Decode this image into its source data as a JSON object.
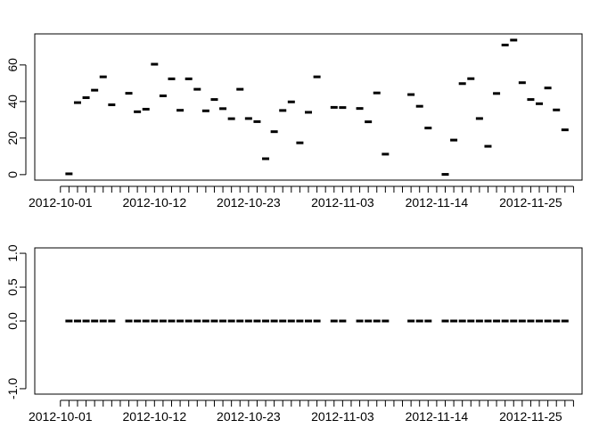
{
  "chart_data": [
    {
      "type": "scatter",
      "title": "",
      "xlabel": "",
      "ylabel": "",
      "x": [
        "2012-10-02",
        "2012-10-03",
        "2012-10-04",
        "2012-10-05",
        "2012-10-06",
        "2012-10-07",
        "2012-10-09",
        "2012-10-10",
        "2012-10-11",
        "2012-10-12",
        "2012-10-13",
        "2012-10-14",
        "2012-10-15",
        "2012-10-16",
        "2012-10-17",
        "2012-10-18",
        "2012-10-19",
        "2012-10-20",
        "2012-10-21",
        "2012-10-22",
        "2012-10-23",
        "2012-10-24",
        "2012-10-25",
        "2012-10-26",
        "2012-10-27",
        "2012-10-28",
        "2012-10-29",
        "2012-10-30",
        "2012-10-31",
        "2012-11-02",
        "2012-11-03",
        "2012-11-05",
        "2012-11-06",
        "2012-11-07",
        "2012-11-08",
        "2012-11-11",
        "2012-11-12",
        "2012-11-13",
        "2012-11-15",
        "2012-11-16",
        "2012-11-17",
        "2012-11-18",
        "2012-11-19",
        "2012-11-20",
        "2012-11-21",
        "2012-11-22",
        "2012-11-23",
        "2012-11-24",
        "2012-11-25",
        "2012-11-26",
        "2012-11-27",
        "2012-11-28",
        "2012-11-29"
      ],
      "y": [
        0.44,
        39.4,
        42.1,
        46.2,
        53.5,
        38.2,
        44.5,
        34.4,
        35.8,
        60.4,
        43.1,
        52.4,
        35.2,
        52.4,
        46.7,
        34.9,
        41.1,
        36.1,
        30.6,
        46.7,
        30.7,
        29.0,
        8.7,
        23.5,
        35.1,
        39.8,
        17.4,
        34.1,
        53.5,
        36.8,
        36.7,
        36.2,
        28.9,
        44.7,
        11.2,
        43.8,
        37.4,
        25.5,
        0.14,
        18.9,
        49.8,
        52.5,
        30.7,
        15.5,
        44.4,
        70.9,
        73.6,
        50.3,
        41.1,
        38.8,
        47.4,
        35.4,
        24.5
      ],
      "xlim": [
        "2012-09-28",
        "2012-12-01"
      ],
      "ylim": [
        -3,
        77
      ],
      "yticks": [
        0,
        20,
        40,
        60
      ],
      "xticks": [
        "2012-10-01",
        "2012-10-12",
        "2012-10-23",
        "2012-11-03",
        "2012-11-14",
        "2012-11-25"
      ],
      "minor_xticks": {
        "from": "2012-10-01",
        "to": "2012-11-30",
        "step_days": 1
      },
      "grid": false
    },
    {
      "type": "scatter",
      "title": "",
      "xlabel": "",
      "ylabel": "",
      "x": [
        "2012-10-02",
        "2012-10-03",
        "2012-10-04",
        "2012-10-05",
        "2012-10-06",
        "2012-10-07",
        "2012-10-09",
        "2012-10-10",
        "2012-10-11",
        "2012-10-12",
        "2012-10-13",
        "2012-10-14",
        "2012-10-15",
        "2012-10-16",
        "2012-10-17",
        "2012-10-18",
        "2012-10-19",
        "2012-10-20",
        "2012-10-21",
        "2012-10-22",
        "2012-10-23",
        "2012-10-24",
        "2012-10-25",
        "2012-10-26",
        "2012-10-27",
        "2012-10-28",
        "2012-10-29",
        "2012-10-30",
        "2012-10-31",
        "2012-11-02",
        "2012-11-03",
        "2012-11-05",
        "2012-11-06",
        "2012-11-07",
        "2012-11-08",
        "2012-11-11",
        "2012-11-12",
        "2012-11-13",
        "2012-11-15",
        "2012-11-16",
        "2012-11-17",
        "2012-11-18",
        "2012-11-19",
        "2012-11-20",
        "2012-11-21",
        "2012-11-22",
        "2012-11-23",
        "2012-11-24",
        "2012-11-25",
        "2012-11-26",
        "2012-11-27",
        "2012-11-28",
        "2012-11-29"
      ],
      "y": [
        0,
        0,
        0,
        0,
        0,
        0,
        0,
        0,
        0,
        0,
        0,
        0,
        0,
        0,
        0,
        0,
        0,
        0,
        0,
        0,
        0,
        0,
        0,
        0,
        0,
        0,
        0,
        0,
        0,
        0,
        0,
        0,
        0,
        0,
        0,
        0,
        0,
        0,
        0,
        0,
        0,
        0,
        0,
        0,
        0,
        0,
        0,
        0,
        0,
        0,
        0,
        0,
        0
      ],
      "xlim": [
        "2012-09-28",
        "2012-12-01"
      ],
      "ylim": [
        -1.08,
        1.08
      ],
      "yticks": [
        -1.0,
        0.0,
        0.5,
        1.0
      ],
      "ytick_labels": [
        "-1.0",
        "0.0",
        "0.5",
        "1.0"
      ],
      "xticks": [
        "2012-10-01",
        "2012-10-12",
        "2012-10-23",
        "2012-11-03",
        "2012-11-14",
        "2012-11-25"
      ],
      "minor_xticks": {
        "from": "2012-10-01",
        "to": "2012-11-30",
        "step_days": 1
      },
      "grid": false
    }
  ]
}
